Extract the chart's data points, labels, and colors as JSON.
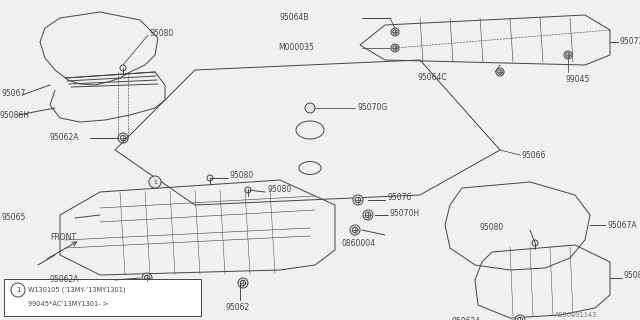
{
  "bg_color": "#f0f0f0",
  "line_color": "#444444",
  "lw": 0.7,
  "diagram_id": "A950001143",
  "note_line1": "W130105 (’13MY-’13MY1301)",
  "note_line2": "99045*AC’13MY1301- >",
  "note_circle": "1"
}
